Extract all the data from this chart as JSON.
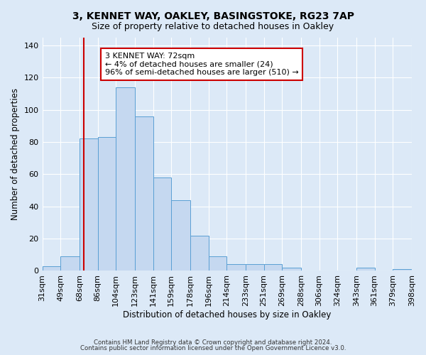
{
  "title1": "3, KENNET WAY, OAKLEY, BASINGSTOKE, RG23 7AP",
  "title2": "Size of property relative to detached houses in Oakley",
  "xlabel": "Distribution of detached houses by size in Oakley",
  "ylabel": "Number of detached properties",
  "bin_labels": [
    "31sqm",
    "49sqm",
    "68sqm",
    "86sqm",
    "104sqm",
    "123sqm",
    "141sqm",
    "159sqm",
    "178sqm",
    "196sqm",
    "214sqm",
    "233sqm",
    "251sqm",
    "269sqm",
    "288sqm",
    "306sqm",
    "324sqm",
    "343sqm",
    "361sqm",
    "379sqm",
    "398sqm"
  ],
  "bin_edges": [
    31,
    49,
    68,
    86,
    104,
    123,
    141,
    159,
    178,
    196,
    214,
    233,
    251,
    269,
    288,
    306,
    324,
    343,
    361,
    379,
    398
  ],
  "bar_heights": [
    3,
    9,
    82,
    83,
    114,
    96,
    58,
    44,
    22,
    9,
    4,
    4,
    4,
    2,
    0,
    0,
    0,
    2,
    0,
    1,
    0
  ],
  "bar_color": "#c5d8f0",
  "bar_edgecolor": "#5a9fd4",
  "vline_x": 72,
  "vline_color": "#cc0000",
  "ylim": [
    0,
    145
  ],
  "yticks": [
    0,
    20,
    40,
    60,
    80,
    100,
    120,
    140
  ],
  "annotation_title": "3 KENNET WAY: 72sqm",
  "annotation_line1": "← 4% of detached houses are smaller (24)",
  "annotation_line2": "96% of semi-detached houses are larger (510) →",
  "annotation_box_color": "#ffffff",
  "annotation_box_edgecolor": "#cc0000",
  "footer1": "Contains HM Land Registry data © Crown copyright and database right 2024.",
  "footer2": "Contains public sector information licensed under the Open Government Licence v3.0.",
  "background_color": "#dce9f7",
  "plot_bg_color": "#dce9f7",
  "grid_color": "#ffffff"
}
